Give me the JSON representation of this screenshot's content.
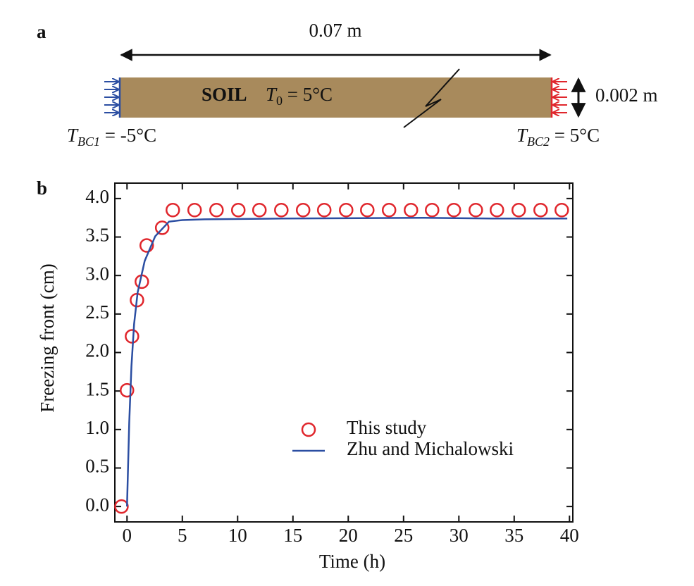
{
  "diagram": {
    "panel_label": "a",
    "length": "0.07 m",
    "thickness": "0.002 m",
    "material": "SOIL",
    "initial_T": {
      "symbol": "T",
      "subscript": "0",
      "text": " = 5°C"
    },
    "left_bc": {
      "symbol": "T",
      "subscript": "BC1",
      "text": " = -5°C",
      "color": "#2b4ea2"
    },
    "right_bc": {
      "symbol": "T",
      "subscript": "BC2",
      "text": " = 5°C",
      "color": "#e0262c"
    }
  },
  "chart_data": {
    "type": "line",
    "panel_label": "b",
    "x_label": "Time (h)",
    "y_label": "Freezing front (cm)",
    "xlim": [
      -1.1,
      40.3
    ],
    "ylim": [
      -0.2,
      4.2
    ],
    "xticks": [
      0,
      5,
      10,
      15,
      20,
      25,
      30,
      35,
      40
    ],
    "yticks": [
      {
        "value": 0,
        "label": "0.0"
      },
      0.5,
      {
        "value": 1,
        "label": "1.0"
      },
      1.5,
      {
        "value": 2,
        "label": "2.0"
      },
      2.5,
      {
        "value": 3,
        "label": "3.0"
      },
      3.5,
      {
        "value": 4,
        "label": "4.0"
      }
    ],
    "series": [
      {
        "name": "This study",
        "color": "#e0262c",
        "style": "markers",
        "x": [
          -0.5,
          0,
          0.45,
          0.9,
          1.34,
          1.78,
          3.18,
          4.14,
          6.11,
          8.09,
          10.06,
          11.97,
          13.95,
          15.92,
          17.83,
          19.81,
          21.72,
          23.69,
          25.67,
          27.58,
          29.55,
          31.53,
          33.44,
          35.41,
          37.39,
          39.3
        ],
        "values": [
          0,
          1.51,
          2.21,
          2.68,
          2.92,
          3.39,
          3.62,
          3.85,
          3.85,
          3.85,
          3.85,
          3.85,
          3.85,
          3.85,
          3.85,
          3.85,
          3.85,
          3.85,
          3.85,
          3.85,
          3.85,
          3.85,
          3.85,
          3.85,
          3.85,
          3.85
        ]
      },
      {
        "name": "Zhu and Michalowski",
        "color": "#2b4ea2",
        "style": "line",
        "x": [
          0,
          0.2,
          0.4,
          0.64,
          0.96,
          1.6,
          2.55,
          3.8,
          5,
          7,
          14,
          26.8,
          33,
          39.8
        ],
        "values": [
          0,
          1.09,
          1.82,
          2.37,
          2.78,
          3.19,
          3.51,
          3.7,
          3.72,
          3.73,
          3.74,
          3.75,
          3.74,
          3.74
        ]
      }
    ]
  }
}
